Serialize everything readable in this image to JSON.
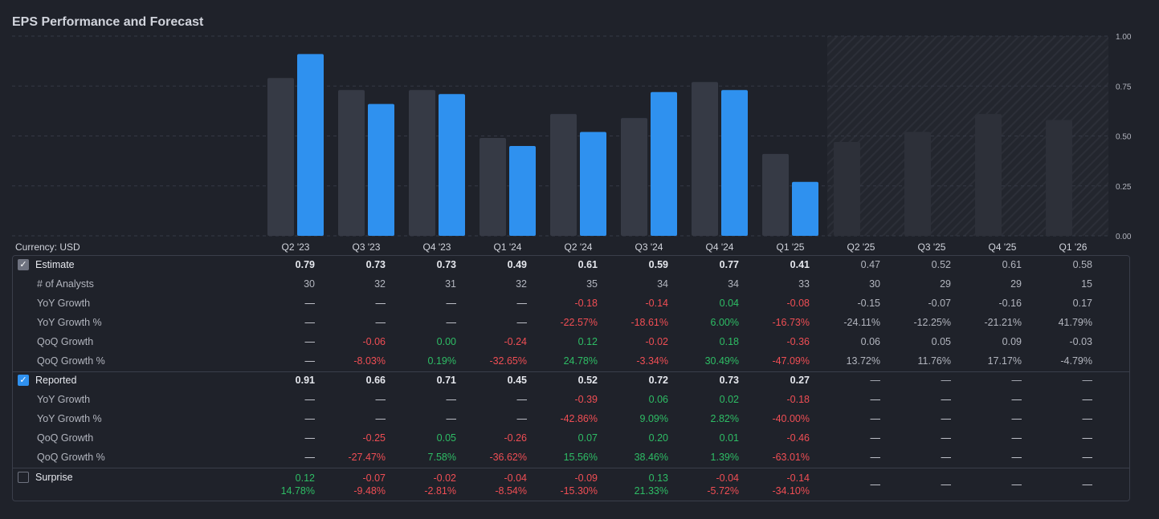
{
  "title": "EPS Performance and Forecast",
  "currency_label": "Currency: USD",
  "colors": {
    "estimate_bar": "#363a45",
    "reported_bar": "#2f91ef",
    "positive": "#2ebd65",
    "negative": "#f04e54",
    "forecast_hatch": "#2a2d35"
  },
  "chart_data": {
    "type": "bar",
    "categories": [
      "Q2 '23",
      "Q3 '23",
      "Q4 '23",
      "Q1 '24",
      "Q2 '24",
      "Q3 '24",
      "Q4 '24",
      "Q1 '25",
      "Q2 '25",
      "Q3 '25",
      "Q4 '25",
      "Q1 '26"
    ],
    "series": [
      {
        "name": "Estimate",
        "values": [
          0.79,
          0.73,
          0.73,
          0.49,
          0.61,
          0.59,
          0.77,
          0.41,
          0.47,
          0.52,
          0.61,
          0.58
        ]
      },
      {
        "name": "Reported",
        "values": [
          0.91,
          0.66,
          0.71,
          0.45,
          0.52,
          0.72,
          0.73,
          0.27,
          null,
          null,
          null,
          null
        ]
      }
    ],
    "forecast_start_index": 8,
    "ylim": [
      0,
      1.0
    ],
    "yticks": [
      "0.00",
      "0.25",
      "0.50",
      "0.75",
      "1.00"
    ],
    "ytick_values": [
      0,
      0.25,
      0.5,
      0.75,
      1.0
    ],
    "grid": true
  },
  "estimate": {
    "label": "Estimate",
    "values": [
      "0.79",
      "0.73",
      "0.73",
      "0.49",
      "0.61",
      "0.59",
      "0.77",
      "0.41",
      "0.47",
      "0.52",
      "0.61",
      "0.58"
    ],
    "rows": [
      {
        "label": "# of Analysts",
        "values": [
          "30",
          "32",
          "31",
          "32",
          "35",
          "34",
          "34",
          "33",
          "30",
          "29",
          "29",
          "15"
        ]
      },
      {
        "label": "YoY Growth",
        "values": [
          "—",
          "—",
          "—",
          "—",
          "-0.18",
          "-0.14",
          "0.04",
          "-0.08",
          "-0.15",
          "-0.07",
          "-0.16",
          "0.17"
        ]
      },
      {
        "label": "YoY Growth %",
        "values": [
          "—",
          "—",
          "—",
          "—",
          "-22.57%",
          "-18.61%",
          "6.00%",
          "-16.73%",
          "-24.11%",
          "-12.25%",
          "-21.21%",
          "41.79%"
        ]
      },
      {
        "label": "QoQ Growth",
        "values": [
          "—",
          "-0.06",
          "0.00",
          "-0.24",
          "0.12",
          "-0.02",
          "0.18",
          "-0.36",
          "0.06",
          "0.05",
          "0.09",
          "-0.03"
        ]
      },
      {
        "label": "QoQ Growth %",
        "values": [
          "—",
          "-8.03%",
          "0.19%",
          "-32.65%",
          "24.78%",
          "-3.34%",
          "30.49%",
          "-47.09%",
          "13.72%",
          "11.76%",
          "17.17%",
          "-4.79%"
        ]
      }
    ]
  },
  "reported": {
    "label": "Reported",
    "values": [
      "0.91",
      "0.66",
      "0.71",
      "0.45",
      "0.52",
      "0.72",
      "0.73",
      "0.27",
      "—",
      "—",
      "—",
      "—"
    ],
    "rows": [
      {
        "label": "YoY Growth",
        "values": [
          "—",
          "—",
          "—",
          "—",
          "-0.39",
          "0.06",
          "0.02",
          "-0.18",
          "—",
          "—",
          "—",
          "—"
        ]
      },
      {
        "label": "YoY Growth %",
        "values": [
          "—",
          "—",
          "—",
          "—",
          "-42.86%",
          "9.09%",
          "2.82%",
          "-40.00%",
          "—",
          "—",
          "—",
          "—"
        ]
      },
      {
        "label": "QoQ Growth",
        "values": [
          "—",
          "-0.25",
          "0.05",
          "-0.26",
          "0.07",
          "0.20",
          "0.01",
          "-0.46",
          "—",
          "—",
          "—",
          "—"
        ]
      },
      {
        "label": "QoQ Growth %",
        "values": [
          "—",
          "-27.47%",
          "7.58%",
          "-36.62%",
          "15.56%",
          "38.46%",
          "1.39%",
          "-63.01%",
          "—",
          "—",
          "—",
          "—"
        ]
      }
    ]
  },
  "surprise": {
    "label": "Surprise",
    "values": [
      "0.12",
      "-0.07",
      "-0.02",
      "-0.04",
      "-0.09",
      "0.13",
      "-0.04",
      "-0.14",
      "—",
      "—",
      "—",
      "—"
    ],
    "percents": [
      "14.78%",
      "-9.48%",
      "-2.81%",
      "-8.54%",
      "-15.30%",
      "21.33%",
      "-5.72%",
      "-34.10%",
      "",
      "",
      "",
      ""
    ]
  },
  "checkbox_glyph": "✓"
}
